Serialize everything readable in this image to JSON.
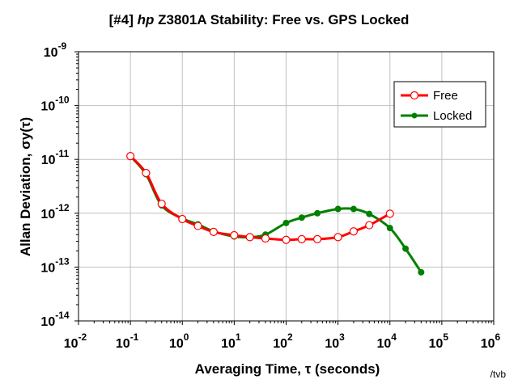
{
  "chart_data": {
    "type": "line",
    "title_prefix": "[#4]",
    "title_brand": "hp",
    "title_rest": "Z3801A Stability: Free vs. GPS Locked",
    "xlabel": "Averaging Time, τ (seconds)",
    "ylabel": "Allan Deviation, σy(τ)",
    "x_scale": "log",
    "y_scale": "log",
    "xlim": [
      0.01,
      1000000
    ],
    "ylim": [
      1e-14,
      1e-09
    ],
    "x_ticks": [
      {
        "base": "10",
        "exp": "-2",
        "value": 0.01
      },
      {
        "base": "10",
        "exp": "-1",
        "value": 0.1
      },
      {
        "base": "10",
        "exp": "0",
        "value": 1
      },
      {
        "base": "10",
        "exp": "1",
        "value": 10
      },
      {
        "base": "10",
        "exp": "2",
        "value": 100
      },
      {
        "base": "10",
        "exp": "3",
        "value": 1000
      },
      {
        "base": "10",
        "exp": "4",
        "value": 10000
      },
      {
        "base": "10",
        "exp": "5",
        "value": 100000
      },
      {
        "base": "10",
        "exp": "6",
        "value": 1000000
      }
    ],
    "y_ticks": [
      {
        "base": "10",
        "exp": "-9",
        "value": 1e-09
      },
      {
        "base": "10",
        "exp": "-10",
        "value": 1e-10
      },
      {
        "base": "10",
        "exp": "-11",
        "value": 1e-11
      },
      {
        "base": "10",
        "exp": "-12",
        "value": 1e-12
      },
      {
        "base": "10",
        "exp": "-13",
        "value": 1e-13
      },
      {
        "base": "10",
        "exp": "-14",
        "value": 1e-14
      }
    ],
    "grid": true,
    "legend_position": "top-right",
    "series": [
      {
        "name": "Free",
        "color": "#ff0000",
        "marker": "open-circle",
        "x": [
          0.1,
          0.2,
          0.4,
          1,
          2,
          4,
          10,
          20,
          40,
          100,
          200,
          400,
          1000,
          2000,
          4000,
          10000
        ],
        "y": [
          1.15e-11,
          5.6e-12,
          1.5e-12,
          7.8e-13,
          5.8e-13,
          4.5e-13,
          3.9e-13,
          3.6e-13,
          3.4e-13,
          3.2e-13,
          3.3e-13,
          3.3e-13,
          3.6e-13,
          4.6e-13,
          6e-13,
          9.8e-13
        ]
      },
      {
        "name": "Locked",
        "color": "#008000",
        "marker": "filled-dot",
        "x": [
          0.1,
          0.2,
          0.4,
          1,
          2,
          4,
          10,
          20,
          40,
          100,
          200,
          400,
          1000,
          2000,
          4000,
          10000,
          20000,
          40000
        ],
        "y": [
          1.15e-11,
          5.3e-12,
          1.4e-12,
          8e-13,
          6.2e-13,
          4.6e-13,
          3.7e-13,
          3.6e-13,
          4e-13,
          6.6e-13,
          8.3e-13,
          1e-12,
          1.2e-12,
          1.2e-12,
          9.7e-13,
          5.3e-13,
          2.2e-13,
          8e-14
        ]
      }
    ]
  },
  "credit": "/tvb"
}
